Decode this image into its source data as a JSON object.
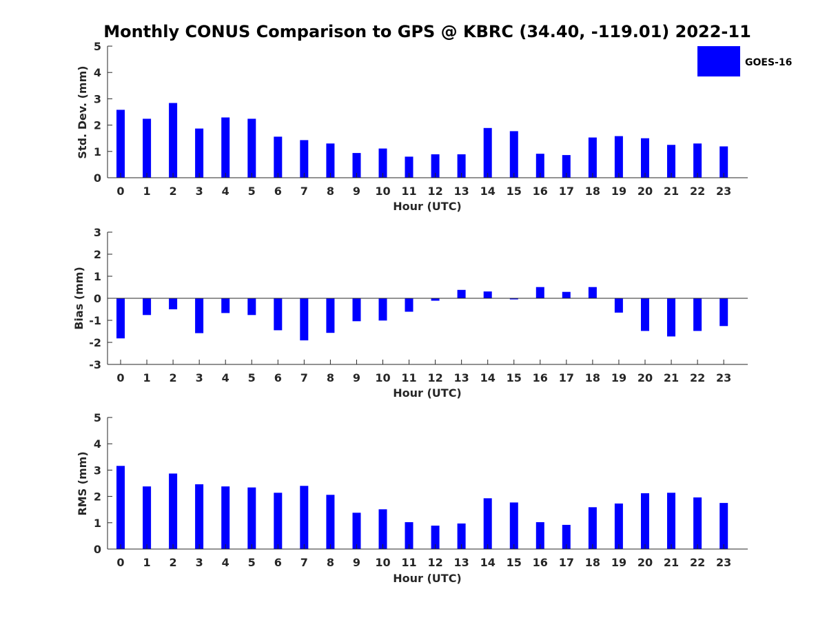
{
  "colors": {
    "bar": "#0000ff",
    "axis": "#262626",
    "background": "#ffffff"
  },
  "figure_title": "Monthly CONUS Comparison to GPS @ KBRC (34.40, -119.01) 2022-11",
  "legend": {
    "label": "GOES-16",
    "position": "top-right"
  },
  "chart_data": [
    {
      "type": "bar",
      "title": "Monthly CONUS Comparison to GPS @ KBRC (34.40, -119.01) 2022-11",
      "xlabel": "Hour (UTC)",
      "ylabel": "Std. Dev. (mm)",
      "ylim": [
        0,
        5
      ],
      "yticks": [
        "0",
        "1",
        "2",
        "3",
        "4",
        "5"
      ],
      "categories": [
        "0",
        "1",
        "2",
        "3",
        "4",
        "5",
        "6",
        "7",
        "8",
        "9",
        "10",
        "11",
        "12",
        "13",
        "14",
        "15",
        "16",
        "17",
        "18",
        "19",
        "20",
        "21",
        "22",
        "23"
      ],
      "series": [
        {
          "name": "GOES-16",
          "values": [
            2.58,
            2.24,
            2.84,
            1.87,
            2.29,
            2.24,
            1.56,
            1.43,
            1.3,
            0.94,
            1.11,
            0.8,
            0.89,
            0.89,
            1.89,
            1.77,
            0.91,
            0.86,
            1.53,
            1.58,
            1.5,
            1.25,
            1.3,
            1.19
          ]
        }
      ],
      "grid": false
    },
    {
      "type": "bar",
      "xlabel": "Hour (UTC)",
      "ylabel": "Bias (mm)",
      "ylim": [
        -3,
        3
      ],
      "yticks": [
        "-3",
        "-2",
        "-1",
        "0",
        "1",
        "2",
        "3"
      ],
      "categories": [
        "0",
        "1",
        "2",
        "3",
        "4",
        "5",
        "6",
        "7",
        "8",
        "9",
        "10",
        "11",
        "12",
        "13",
        "14",
        "15",
        "16",
        "17",
        "18",
        "19",
        "20",
        "21",
        "22",
        "23"
      ],
      "series": [
        {
          "name": "GOES-16",
          "values": [
            -1.82,
            -0.76,
            -0.5,
            -1.58,
            -0.67,
            -0.76,
            -1.45,
            -1.91,
            -1.57,
            -1.04,
            -1.01,
            -0.61,
            -0.11,
            0.38,
            0.31,
            -0.05,
            0.51,
            0.29,
            0.51,
            -0.65,
            -1.48,
            -1.73,
            -1.48,
            -1.26
          ]
        }
      ],
      "grid": false
    },
    {
      "type": "bar",
      "xlabel": "Hour (UTC)",
      "ylabel": "RMS (mm)",
      "ylim": [
        0,
        5
      ],
      "yticks": [
        "0",
        "1",
        "2",
        "3",
        "4",
        "5"
      ],
      "categories": [
        "0",
        "1",
        "2",
        "3",
        "4",
        "5",
        "6",
        "7",
        "8",
        "9",
        "10",
        "11",
        "12",
        "13",
        "14",
        "15",
        "16",
        "17",
        "18",
        "19",
        "20",
        "21",
        "22",
        "23"
      ],
      "series": [
        {
          "name": "GOES-16",
          "values": [
            3.16,
            2.38,
            2.87,
            2.46,
            2.38,
            2.34,
            2.14,
            2.4,
            2.06,
            1.38,
            1.51,
            1.02,
            0.89,
            0.97,
            1.93,
            1.77,
            1.02,
            0.92,
            1.59,
            1.73,
            2.12,
            2.14,
            1.96,
            1.75
          ]
        }
      ],
      "grid": false
    }
  ]
}
